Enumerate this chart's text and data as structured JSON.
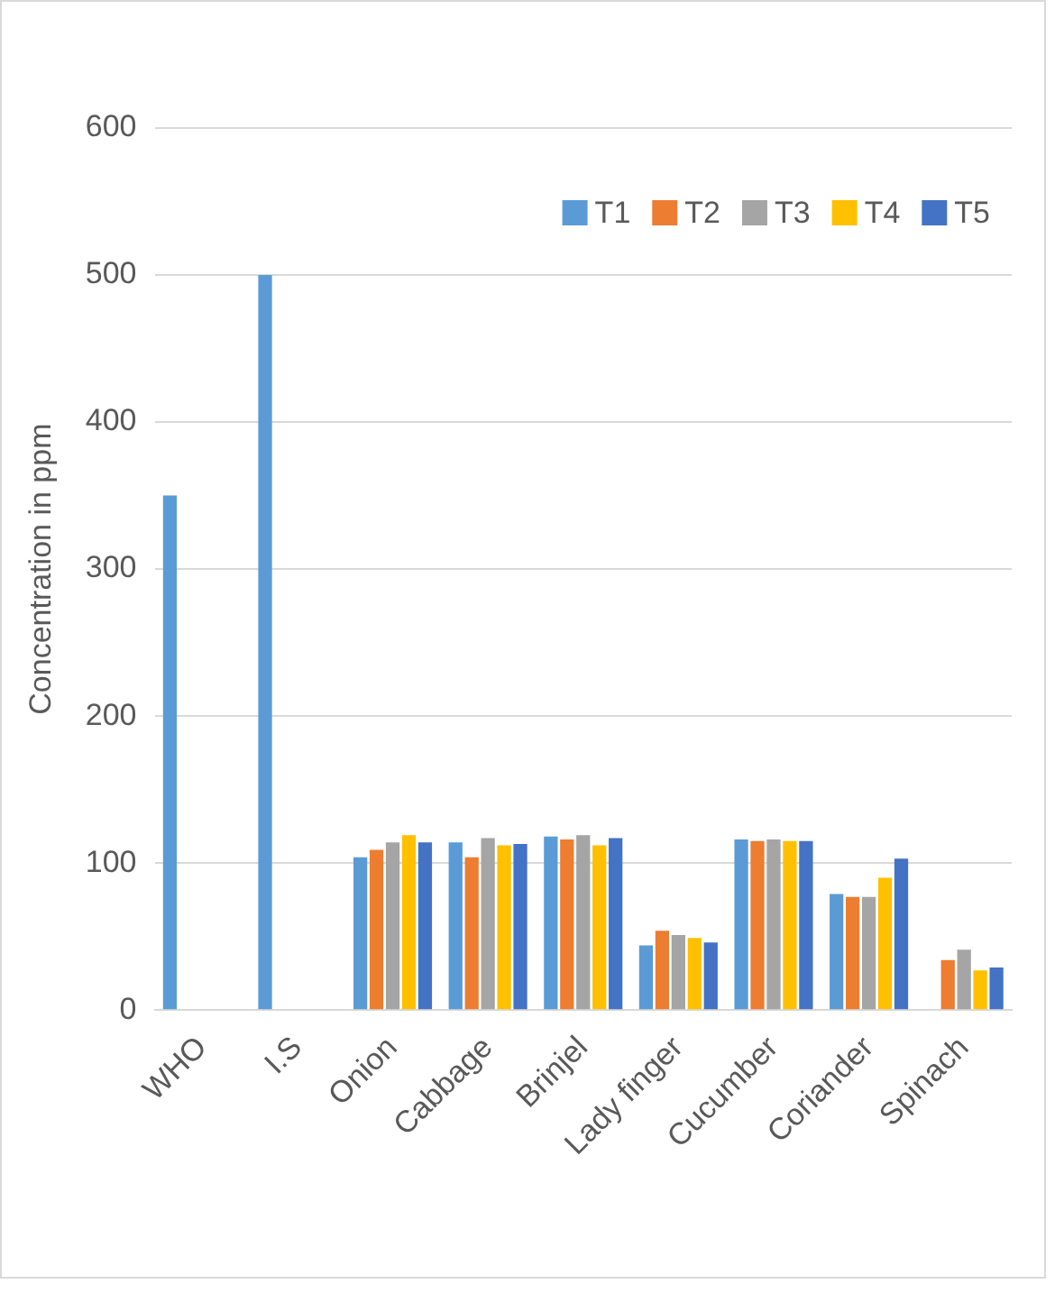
{
  "chart_data": {
    "type": "bar",
    "ylabel": "Concentration in ppm",
    "categories": [
      "WHO",
      "I.S",
      "Onion",
      "Cabbage",
      "Brinjel",
      "Lady finger",
      "Cucumber",
      "Coriander",
      "Spinach"
    ],
    "series": [
      {
        "name": "T1",
        "color": "#5b9bd5",
        "values": [
          350,
          500,
          104,
          114,
          118,
          44,
          116,
          79,
          null
        ]
      },
      {
        "name": "T2",
        "color": "#ed7d31",
        "values": [
          null,
          null,
          109,
          104,
          116,
          54,
          115,
          77,
          34
        ]
      },
      {
        "name": "T3",
        "color": "#a5a5a5",
        "values": [
          null,
          null,
          114,
          117,
          119,
          51,
          116,
          77,
          41
        ]
      },
      {
        "name": "T4",
        "color": "#ffc000",
        "values": [
          null,
          null,
          119,
          112,
          112,
          49,
          115,
          90,
          27
        ]
      },
      {
        "name": "T5",
        "color": "#4472c4",
        "values": [
          null,
          null,
          114,
          113,
          117,
          46,
          115,
          103,
          29
        ]
      }
    ],
    "ylim": [
      0,
      600
    ],
    "yticks": [
      0,
      100,
      200,
      300,
      400,
      500,
      600
    ],
    "grid": "y",
    "legend": "top right"
  }
}
